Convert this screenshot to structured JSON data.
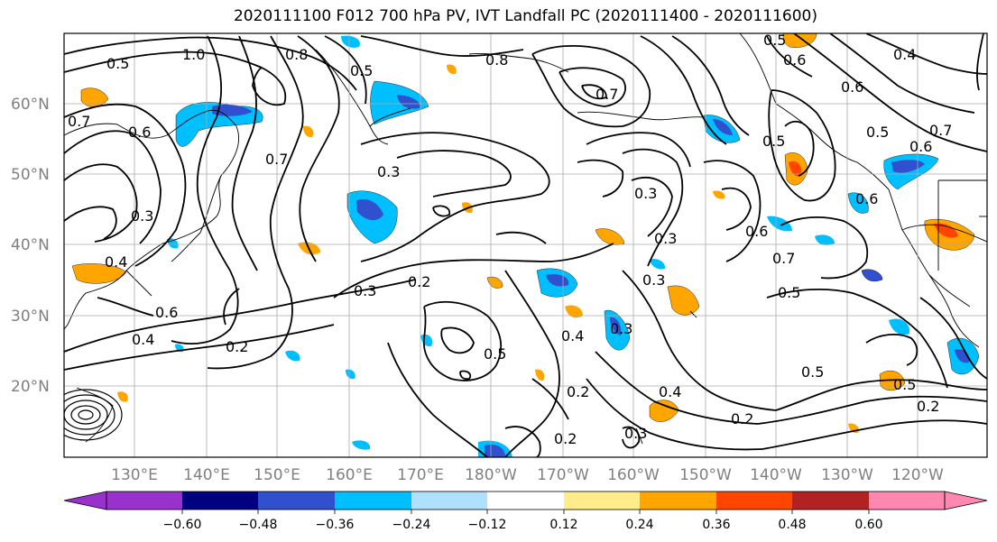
{
  "title": "2020111100 F012 700 hPa PV, IVT Landfall PC (2020111400 - 2020111600)",
  "lat_labels": [
    "60°N",
    "50°N",
    "40°N",
    "30°N",
    "20°N"
  ],
  "lon_labels": [
    "130°E",
    "140°E",
    "150°E",
    "160°E",
    "170°E",
    "180°W",
    "170°W",
    "160°W",
    "150°W",
    "140°W",
    "130°W",
    "120°W"
  ],
  "contour_labels": [
    "1.0",
    "0.5",
    "0.8",
    "0.5",
    "0.8",
    "0.7",
    "0.6",
    "0.5",
    "0.4",
    "0.7",
    "0.6",
    "0.6",
    "0.5",
    "0.7",
    "0.6",
    "0.5",
    "0.3",
    "0.7",
    "0.3",
    "0.3",
    "0.6",
    "0.7",
    "0.3",
    "0.4",
    "0.2",
    "0.6",
    "0.4",
    "0.2",
    "0.3",
    "0.5",
    "0.4",
    "0.3",
    "0.2",
    "0.4",
    "0.2",
    "0.3",
    "0.2",
    "0.5",
    "0.5",
    "0.2",
    "0.5",
    "0.6",
    "0.3"
  ],
  "colorbar": {
    "tick_labels": [
      "−0.60",
      "−0.48",
      "−0.36",
      "−0.24",
      "−0.12",
      "0.12",
      "0.24",
      "0.36",
      "0.48",
      "0.60"
    ],
    "colors": [
      "#9932cc",
      "#000080",
      "#3050d0",
      "#00bfff",
      "#b0e0ff",
      "#ffffff",
      "#ffec8b",
      "#ffa500",
      "#ff4500",
      "#b22222",
      "#ff88b0"
    ]
  }
}
